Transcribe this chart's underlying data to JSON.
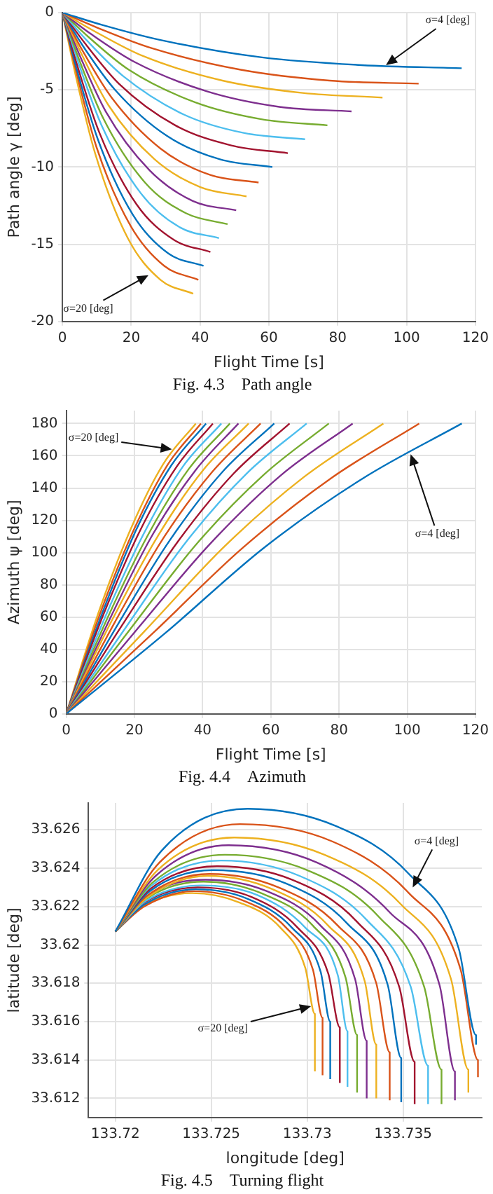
{
  "chart_data": [
    {
      "type": "line",
      "title": "Fig. 4.3　Path angle",
      "xlabel": "Flight Time [s]",
      "ylabel": "Path angle γ [deg]",
      "xlim": [
        0,
        120
      ],
      "xticks": [
        0,
        20,
        40,
        60,
        80,
        100,
        120
      ],
      "ylim": [
        -20,
        0
      ],
      "yticks": [
        -20,
        -15,
        -10,
        -5,
        0
      ],
      "grid": true,
      "annotations": [
        {
          "text": "σ=4 [deg]",
          "x": 94,
          "y": -3.4
        },
        {
          "text": "σ=20 [deg]",
          "x": 25,
          "y": -17
        }
      ],
      "series": [
        {
          "color": "#0072bd",
          "x": [
            0,
            11.6,
            29,
            58,
            87,
            116
          ],
          "values": [
            0,
            -0.8,
            -1.8,
            -2.9,
            -3.4,
            -3.6
          ]
        },
        {
          "color": "#d95319",
          "x": [
            0,
            10.4,
            25.9,
            51.8,
            77.6,
            103.5
          ],
          "values": [
            0,
            -1.0,
            -2.3,
            -3.7,
            -4.4,
            -4.6
          ]
        },
        {
          "color": "#edb120",
          "x": [
            0,
            9.3,
            23.3,
            46.5,
            69.8,
            93
          ],
          "values": [
            0,
            -1.2,
            -2.8,
            -4.4,
            -5.2,
            -5.5
          ]
        },
        {
          "color": "#7e2f8e",
          "x": [
            0,
            8.4,
            21,
            42,
            63,
            84
          ],
          "values": [
            0,
            -1.4,
            -3.2,
            -5.1,
            -6.1,
            -6.4
          ]
        },
        {
          "color": "#77ac30",
          "x": [
            0,
            7.7,
            19.3,
            38.5,
            57.8,
            77
          ],
          "values": [
            0,
            -1.6,
            -3.7,
            -5.8,
            -6.9,
            -7.3
          ]
        },
        {
          "color": "#4dbeee",
          "x": [
            0,
            7.1,
            17.6,
            35.3,
            52.9,
            70.5
          ],
          "values": [
            0,
            -1.8,
            -4.1,
            -6.6,
            -7.8,
            -8.2
          ]
        },
        {
          "color": "#a2142f",
          "x": [
            0,
            6.6,
            16.4,
            32.8,
            49.1,
            65.5
          ],
          "values": [
            0,
            -2.0,
            -4.6,
            -7.3,
            -8.6,
            -9.1
          ]
        },
        {
          "color": "#0072bd",
          "x": [
            0,
            6.1,
            15.3,
            30.5,
            45.8,
            61
          ],
          "values": [
            0,
            -2.2,
            -5.0,
            -8.0,
            -9.5,
            -10.0
          ]
        },
        {
          "color": "#d95319",
          "x": [
            0,
            5.7,
            14.3,
            28.5,
            42.8,
            57
          ],
          "values": [
            0,
            -2.4,
            -5.5,
            -8.8,
            -10.5,
            -11.0
          ]
        },
        {
          "color": "#edb120",
          "x": [
            0,
            5.4,
            13.4,
            26.8,
            40.1,
            53.5
          ],
          "values": [
            0,
            -2.6,
            -6.0,
            -9.5,
            -11.3,
            -11.9
          ]
        },
        {
          "color": "#7e2f8e",
          "x": [
            0,
            5.1,
            12.6,
            25.3,
            37.9,
            50.5
          ],
          "values": [
            0,
            -2.8,
            -6.4,
            -10.2,
            -12.2,
            -12.8
          ]
        },
        {
          "color": "#77ac30",
          "x": [
            0,
            4.8,
            12,
            24,
            36,
            48
          ],
          "values": [
            0,
            -3.0,
            -6.9,
            -11.0,
            -13.0,
            -13.7
          ]
        },
        {
          "color": "#4dbeee",
          "x": [
            0,
            4.6,
            11.4,
            22.8,
            34.1,
            45.5
          ],
          "values": [
            0,
            -3.2,
            -7.3,
            -11.7,
            -13.9,
            -14.6
          ]
        },
        {
          "color": "#a2142f",
          "x": [
            0,
            4.3,
            10.8,
            21.5,
            32.3,
            43
          ],
          "values": [
            0,
            -3.4,
            -7.8,
            -12.4,
            -14.7,
            -15.5
          ]
        },
        {
          "color": "#0072bd",
          "x": [
            0,
            4.1,
            10.3,
            20.5,
            30.8,
            41
          ],
          "values": [
            0,
            -3.6,
            -8.2,
            -13.1,
            -15.6,
            -16.4
          ]
        },
        {
          "color": "#d95319",
          "x": [
            0,
            4.0,
            9.9,
            19.8,
            29.6,
            39.5
          ],
          "values": [
            0,
            -3.8,
            -8.7,
            -13.8,
            -16.4,
            -17.3
          ]
        },
        {
          "color": "#edb120",
          "x": [
            0,
            3.8,
            9.5,
            19,
            28.5,
            38
          ],
          "values": [
            0,
            -4.0,
            -9.1,
            -14.6,
            -17.3,
            -18.2
          ]
        }
      ]
    },
    {
      "type": "line",
      "title": "Fig. 4.4　Azimuth",
      "xlabel": "Flight Time [s]",
      "ylabel": "Azimuth ψ [deg]",
      "xlim": [
        0,
        120
      ],
      "xticks": [
        0,
        20,
        40,
        60,
        80,
        100,
        120
      ],
      "ylim": [
        0,
        188
      ],
      "yticks": [
        0,
        20,
        40,
        60,
        80,
        100,
        120,
        140,
        160,
        180
      ],
      "grid": true,
      "annotations": [
        {
          "text": "σ=20 [deg]",
          "x": 31,
          "y": 164
        },
        {
          "text": "σ=4 [deg]",
          "x": 101,
          "y": 161
        }
      ],
      "series": [
        {
          "color": "#0072bd",
          "x": [
            0,
            29,
            58,
            87,
            116
          ],
          "values": [
            0,
            50,
            103,
            146,
            180
          ]
        },
        {
          "color": "#d95319",
          "x": [
            0,
            25.9,
            51.8,
            77.6,
            103.5
          ],
          "values": [
            0,
            51,
            103,
            146,
            180
          ]
        },
        {
          "color": "#edb120",
          "x": [
            0,
            23.3,
            46.5,
            69.8,
            93
          ],
          "values": [
            0,
            52,
            104,
            147,
            180
          ]
        },
        {
          "color": "#7e2f8e",
          "x": [
            0,
            21,
            42,
            63,
            84
          ],
          "values": [
            0,
            53,
            105,
            148,
            180
          ]
        },
        {
          "color": "#77ac30",
          "x": [
            0,
            19.3,
            38.5,
            57.8,
            77
          ],
          "values": [
            0,
            54,
            106,
            148,
            180
          ]
        },
        {
          "color": "#4dbeee",
          "x": [
            0,
            17.6,
            35.3,
            52.9,
            70.5
          ],
          "values": [
            0,
            54,
            107,
            149,
            180
          ]
        },
        {
          "color": "#a2142f",
          "x": [
            0,
            16.4,
            32.8,
            49.1,
            65.5
          ],
          "values": [
            0,
            55,
            107,
            149,
            180
          ]
        },
        {
          "color": "#0072bd",
          "x": [
            0,
            15.3,
            30.5,
            45.8,
            61
          ],
          "values": [
            0,
            56,
            108,
            150,
            180
          ]
        },
        {
          "color": "#d95319",
          "x": [
            0,
            14.3,
            28.5,
            42.8,
            57
          ],
          "values": [
            0,
            57,
            109,
            150,
            180
          ]
        },
        {
          "color": "#edb120",
          "x": [
            0,
            13.4,
            26.8,
            40.1,
            53.5
          ],
          "values": [
            0,
            58,
            110,
            151,
            180
          ]
        },
        {
          "color": "#7e2f8e",
          "x": [
            0,
            12.6,
            25.3,
            37.9,
            50.5
          ],
          "values": [
            0,
            58,
            111,
            151,
            180
          ]
        },
        {
          "color": "#77ac30",
          "x": [
            0,
            12,
            24,
            36,
            48
          ],
          "values": [
            0,
            59,
            111,
            152,
            180
          ]
        },
        {
          "color": "#4dbeee",
          "x": [
            0,
            11.4,
            22.8,
            34.1,
            45.5
          ],
          "values": [
            0,
            60,
            112,
            153,
            180
          ]
        },
        {
          "color": "#a2142f",
          "x": [
            0,
            10.8,
            21.5,
            32.3,
            43
          ],
          "values": [
            0,
            61,
            113,
            153,
            180
          ]
        },
        {
          "color": "#0072bd",
          "x": [
            0,
            10.3,
            20.5,
            30.8,
            41
          ],
          "values": [
            0,
            61,
            114,
            154,
            180
          ]
        },
        {
          "color": "#d95319",
          "x": [
            0,
            9.9,
            19.8,
            29.6,
            39.5
          ],
          "values": [
            0,
            62,
            114,
            154,
            180
          ]
        },
        {
          "color": "#edb120",
          "x": [
            0,
            9.5,
            19,
            28.5,
            38
          ],
          "values": [
            0,
            63,
            115,
            155,
            180
          ]
        }
      ]
    },
    {
      "type": "line",
      "title": "Fig. 4.5　Turning flight",
      "xlabel": "longitude [deg]",
      "ylabel": "latitude [deg]",
      "xlim": [
        133.7186,
        133.7391
      ],
      "xticks": [
        133.72,
        133.725,
        133.73,
        133.735
      ],
      "ylim": [
        33.611,
        33.6274
      ],
      "yticks": [
        33.612,
        33.614,
        33.616,
        33.618,
        33.62,
        33.622,
        33.624,
        33.626
      ],
      "grid": true,
      "annotations": [
        {
          "text": "σ=4 [deg]",
          "x": 133.7355,
          "y": 33.623
        },
        {
          "text": "σ=20 [deg]",
          "x": 133.7302,
          "y": 33.6168
        }
      ],
      "series": [
        {
          "color": "#0072bd",
          "x": [
            133.72,
            133.7224,
            133.7269,
            133.7315,
            133.7353,
            133.7379,
            133.7388,
            133.7388
          ],
          "values": [
            33.6207,
            33.6249,
            33.6271,
            33.6262,
            33.6237,
            33.6198,
            33.6153,
            33.6148
          ]
        },
        {
          "color": "#d95319",
          "x": [
            133.72,
            133.7223,
            133.7265,
            133.7313,
            133.7353,
            133.738,
            133.7389,
            133.7389
          ],
          "values": [
            33.6207,
            33.6243,
            33.6263,
            33.6254,
            33.6227,
            33.6187,
            33.614,
            33.6131
          ]
        },
        {
          "color": "#edb120",
          "x": [
            133.72,
            133.7222,
            133.7262,
            133.7309,
            133.7349,
            133.7375,
            133.7384,
            133.7384
          ],
          "values": [
            33.6207,
            33.6239,
            33.6256,
            33.6247,
            33.6221,
            33.6182,
            33.6135,
            33.6123
          ]
        },
        {
          "color": "#7e2f8e",
          "x": [
            133.72,
            133.7221,
            133.7259,
            133.7305,
            133.7343,
            133.7369,
            133.7377,
            133.7377
          ],
          "values": [
            33.6207,
            33.6236,
            33.6252,
            33.6243,
            33.6217,
            33.6179,
            33.6134,
            33.6119
          ]
        },
        {
          "color": "#77ac30",
          "x": [
            133.72,
            133.722,
            133.7257,
            133.73,
            133.7337,
            133.7361,
            133.737,
            133.737
          ],
          "values": [
            33.6207,
            33.6233,
            33.6247,
            33.6239,
            33.6215,
            33.6178,
            33.6135,
            33.6117
          ]
        },
        {
          "color": "#4dbeee",
          "x": [
            133.72,
            133.7219,
            133.7255,
            133.7296,
            133.7331,
            133.7354,
            133.7363,
            133.7363
          ],
          "values": [
            33.6207,
            33.6231,
            33.6244,
            33.6236,
            33.6213,
            33.6178,
            33.6137,
            33.6117
          ]
        },
        {
          "color": "#a2142f",
          "x": [
            133.72,
            133.7218,
            133.7253,
            133.7292,
            133.7326,
            133.7348,
            133.7356,
            133.7356
          ],
          "values": [
            33.6207,
            33.6229,
            33.6241,
            33.6234,
            33.6212,
            33.6178,
            33.6139,
            33.6117
          ]
        },
        {
          "color": "#0072bd",
          "x": [
            133.72,
            133.7218,
            133.7251,
            133.7289,
            133.7321,
            133.7342,
            133.7349,
            133.7349
          ],
          "values": [
            33.6207,
            33.6228,
            33.6239,
            33.6232,
            33.6211,
            33.6179,
            33.6141,
            33.6118
          ]
        },
        {
          "color": "#d95319",
          "x": [
            133.72,
            133.7217,
            133.7249,
            133.7285,
            133.7316,
            133.7336,
            133.7343,
            133.7343
          ],
          "values": [
            33.6207,
            33.6226,
            33.6237,
            33.623,
            33.621,
            33.618,
            33.6144,
            33.6119
          ]
        },
        {
          "color": "#edb120",
          "x": [
            133.72,
            133.7217,
            133.7248,
            133.7282,
            133.7311,
            133.733,
            133.7336,
            133.7336
          ],
          "values": [
            33.6207,
            33.6225,
            33.6236,
            33.6229,
            33.621,
            33.6181,
            33.6148,
            33.612
          ]
        },
        {
          "color": "#7e2f8e",
          "x": [
            133.72,
            133.7216,
            133.7247,
            133.7279,
            133.7307,
            133.7325,
            133.7331,
            133.7331
          ],
          "values": [
            33.6207,
            33.6225,
            33.6234,
            33.6228,
            33.621,
            33.6182,
            33.615,
            33.612
          ]
        },
        {
          "color": "#77ac30",
          "x": [
            133.72,
            133.7216,
            133.7246,
            133.7276,
            133.7303,
            133.732,
            133.7326,
            133.7326
          ],
          "values": [
            33.6207,
            33.6224,
            33.6233,
            33.6227,
            33.621,
            33.6183,
            33.6153,
            33.6123
          ]
        },
        {
          "color": "#4dbeee",
          "x": [
            133.72,
            133.7216,
            133.7245,
            133.7274,
            133.7299,
            133.7316,
            133.7321,
            133.7321
          ],
          "values": [
            33.6207,
            33.6223,
            33.6231,
            33.6226,
            33.6209,
            33.6184,
            33.6155,
            33.6126
          ]
        },
        {
          "color": "#a2142f",
          "x": [
            133.72,
            133.7215,
            133.7243,
            133.7271,
            133.7295,
            133.7311,
            133.7317,
            133.7317
          ],
          "values": [
            33.6207,
            33.6222,
            33.623,
            33.6225,
            33.6209,
            33.6185,
            33.6157,
            33.6128
          ]
        },
        {
          "color": "#0072bd",
          "x": [
            133.72,
            133.7215,
            133.7242,
            133.7269,
            133.7292,
            133.7307,
            133.7312,
            133.7312
          ],
          "values": [
            33.6207,
            33.6221,
            33.6229,
            33.6224,
            33.6209,
            33.6186,
            33.616,
            33.613
          ]
        },
        {
          "color": "#d95319",
          "x": [
            133.72,
            133.7215,
            133.7241,
            133.7267,
            133.7289,
            133.7303,
            133.7308,
            133.7308
          ],
          "values": [
            33.6207,
            33.622,
            33.6228,
            33.6223,
            33.6209,
            33.6187,
            33.6162,
            33.6132
          ]
        },
        {
          "color": "#edb120",
          "x": [
            133.72,
            133.7214,
            133.724,
            133.7265,
            133.7286,
            133.7299,
            133.7304,
            133.7304
          ],
          "values": [
            33.6207,
            33.622,
            33.6227,
            33.6222,
            33.6209,
            33.6188,
            33.6164,
            33.6134
          ]
        }
      ]
    }
  ]
}
